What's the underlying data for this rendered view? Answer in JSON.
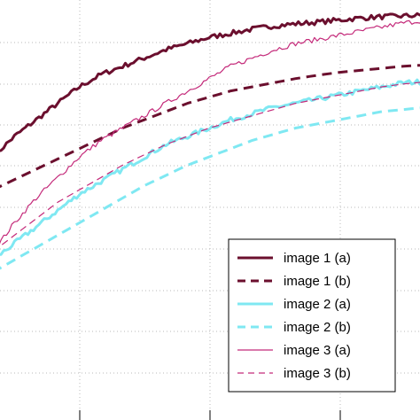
{
  "chart_data": {
    "type": "line",
    "grid": true,
    "grid_style": "dotted",
    "legend_position": "bottom-right",
    "x_range": [
      0,
      1
    ],
    "y_range": [
      0,
      1
    ],
    "series": [
      {
        "name": "image 1 (a)",
        "color": "#6b0f2e",
        "style": "solid",
        "weight": "thick",
        "noisy": true,
        "x": [
          0.0,
          0.02,
          0.05,
          0.1,
          0.15,
          0.2,
          0.25,
          0.3,
          0.35,
          0.4,
          0.45,
          0.5,
          0.55,
          0.6,
          0.65,
          0.7,
          0.75,
          0.8,
          0.85,
          0.9,
          0.95,
          1.0
        ],
        "y": [
          0.62,
          0.65,
          0.68,
          0.72,
          0.76,
          0.8,
          0.83,
          0.85,
          0.87,
          0.89,
          0.905,
          0.92,
          0.93,
          0.94,
          0.948,
          0.953,
          0.957,
          0.962,
          0.967,
          0.97,
          0.972,
          0.974
        ]
      },
      {
        "name": "image 1 (b)",
        "color": "#6b0f2e",
        "style": "dashed",
        "weight": "thick",
        "noisy": false,
        "x": [
          0.0,
          0.05,
          0.1,
          0.15,
          0.2,
          0.25,
          0.3,
          0.35,
          0.4,
          0.45,
          0.5,
          0.55,
          0.6,
          0.65,
          0.7,
          0.75,
          0.8,
          0.85,
          0.9,
          0.95,
          1.0
        ],
        "y": [
          0.55,
          0.575,
          0.6,
          0.625,
          0.65,
          0.675,
          0.7,
          0.72,
          0.74,
          0.76,
          0.775,
          0.79,
          0.8,
          0.81,
          0.82,
          0.828,
          0.835,
          0.84,
          0.845,
          0.85,
          0.853
        ]
      },
      {
        "name": "image 2 (a)",
        "color": "#7fe8f2",
        "style": "solid",
        "weight": "thick",
        "noisy": true,
        "x": [
          0.0,
          0.05,
          0.1,
          0.15,
          0.2,
          0.25,
          0.3,
          0.35,
          0.4,
          0.45,
          0.5,
          0.55,
          0.6,
          0.65,
          0.7,
          0.75,
          0.8,
          0.85,
          0.9,
          0.95,
          1.0
        ],
        "y": [
          0.38,
          0.42,
          0.46,
          0.5,
          0.54,
          0.57,
          0.6,
          0.63,
          0.66,
          0.68,
          0.7,
          0.72,
          0.735,
          0.75,
          0.76,
          0.77,
          0.78,
          0.79,
          0.8,
          0.81,
          0.813
        ]
      },
      {
        "name": "image 2 (b)",
        "color": "#7fe8f2",
        "style": "dashed",
        "weight": "thick",
        "noisy": false,
        "x": [
          0.0,
          0.05,
          0.1,
          0.15,
          0.2,
          0.25,
          0.3,
          0.35,
          0.4,
          0.45,
          0.5,
          0.55,
          0.6,
          0.65,
          0.7,
          0.75,
          0.8,
          0.85,
          0.9,
          0.95,
          1.0
        ],
        "y": [
          0.35,
          0.38,
          0.41,
          0.44,
          0.47,
          0.5,
          0.53,
          0.56,
          0.585,
          0.61,
          0.63,
          0.65,
          0.67,
          0.685,
          0.7,
          0.71,
          0.72,
          0.73,
          0.74,
          0.745,
          0.75
        ]
      },
      {
        "name": "image 3 (a)",
        "color": "#c42a7a",
        "style": "solid",
        "weight": "thin",
        "noisy": true,
        "x": [
          0.0,
          0.05,
          0.1,
          0.15,
          0.2,
          0.25,
          0.3,
          0.35,
          0.4,
          0.45,
          0.5,
          0.55,
          0.6,
          0.65,
          0.7,
          0.75,
          0.8,
          0.85,
          0.9,
          0.95,
          1.0
        ],
        "y": [
          0.4,
          0.47,
          0.53,
          0.58,
          0.63,
          0.67,
          0.7,
          0.73,
          0.76,
          0.79,
          0.82,
          0.85,
          0.87,
          0.89,
          0.905,
          0.915,
          0.925,
          0.935,
          0.945,
          0.955,
          0.962
        ]
      },
      {
        "name": "image 3 (b)",
        "color": "#c42a7a",
        "style": "dashed",
        "weight": "thin",
        "noisy": false,
        "x": [
          0.0,
          0.05,
          0.1,
          0.15,
          0.2,
          0.25,
          0.3,
          0.35,
          0.4,
          0.45,
          0.5,
          0.55,
          0.6,
          0.65,
          0.7,
          0.75,
          0.8,
          0.85,
          0.9,
          0.95,
          1.0
        ],
        "y": [
          0.4,
          0.44,
          0.48,
          0.52,
          0.55,
          0.58,
          0.61,
          0.635,
          0.66,
          0.68,
          0.7,
          0.715,
          0.73,
          0.745,
          0.76,
          0.77,
          0.78,
          0.79,
          0.8,
          0.807,
          0.812
        ]
      }
    ]
  }
}
